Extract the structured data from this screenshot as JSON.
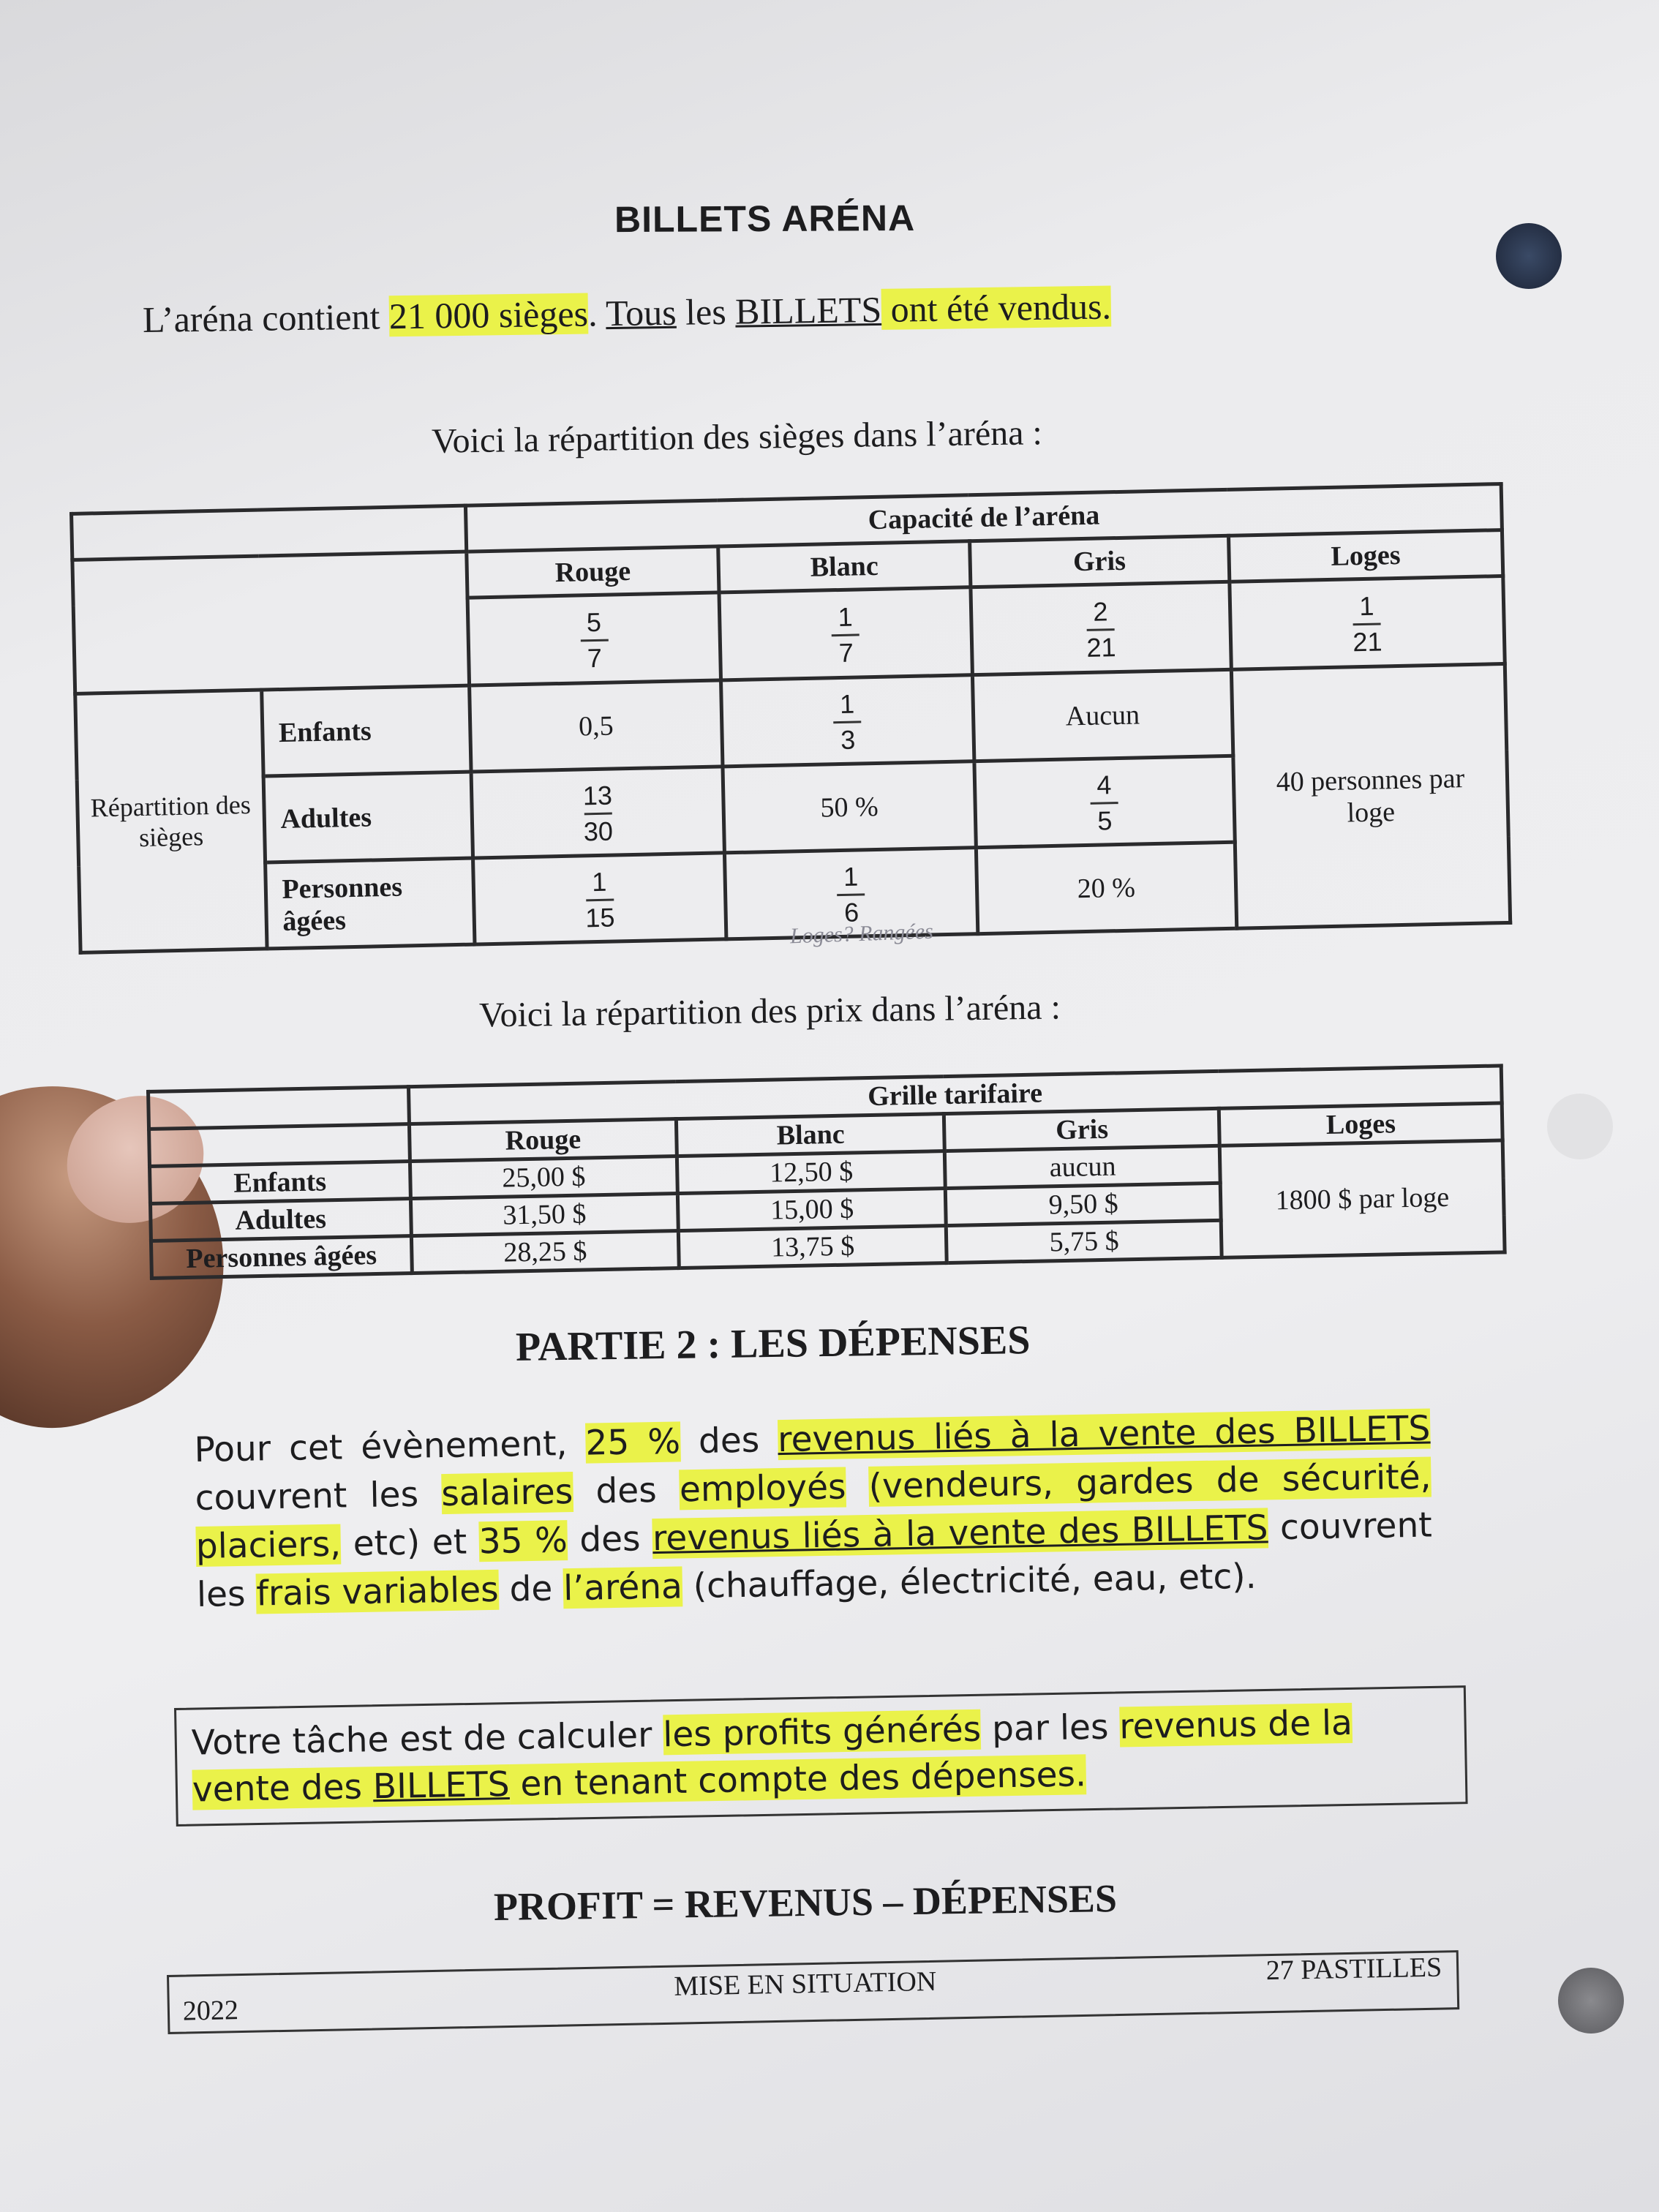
{
  "title": {
    "main": "BILLETS ARÉNA"
  },
  "intro": {
    "s1": "L’aréna contient ",
    "s2": "21 000 sièges",
    "s3": ". ",
    "s4": "Tous",
    "s5": " les ",
    "s6": "BILLETS",
    "s7": " ont été vendus."
  },
  "seats": {
    "caption": "Voici la répartition des sièges dans l’aréna :",
    "header": "Capacité de l’aréna",
    "columns": [
      "Rouge",
      "Blanc",
      "Gris",
      "Loges"
    ],
    "capacity": [
      {
        "num": "5",
        "den": "7"
      },
      {
        "num": "1",
        "den": "7"
      },
      {
        "num": "2",
        "den": "21"
      },
      {
        "num": "1",
        "den": "21"
      }
    ],
    "row_group": "Répartition des sièges",
    "rows": [
      {
        "label": "Enfants",
        "rouge": "0,5",
        "blanc": {
          "num": "1",
          "den": "3"
        },
        "gris": "Aucun"
      },
      {
        "label": "Adultes",
        "rouge": {
          "num": "13",
          "den": "30"
        },
        "blanc": "50 %",
        "gris": {
          "num": "4",
          "den": "5"
        }
      },
      {
        "label": "Personnes âgées",
        "rouge": {
          "num": "1",
          "den": "15"
        },
        "blanc": {
          "num": "1",
          "den": "6"
        },
        "gris": "20 %"
      }
    ],
    "loges_note": "40 personnes par loge",
    "handwritten": "Loges? Rangées"
  },
  "prices": {
    "caption": "Voici la répartition des prix dans l’aréna :",
    "header": "Grille tarifaire",
    "columns": [
      "Rouge",
      "Blanc",
      "Gris",
      "Loges"
    ],
    "rows": [
      {
        "label": "Enfants",
        "values": [
          "25,00 $",
          "12,50 $",
          "aucun"
        ]
      },
      {
        "label": "Adultes",
        "values": [
          "31,50 $",
          "15,00 $",
          "9,50 $"
        ]
      },
      {
        "label": "Personnes âgées",
        "values": [
          "28,25 $",
          "13,75 $",
          "5,75 $"
        ]
      }
    ],
    "loges": "1800 $ par loge"
  },
  "partie2": {
    "title": "PARTIE 2 : LES DÉPENSES",
    "p": [
      "Pour cet évènement, ",
      "25 %",
      " des ",
      "revenus liés à la vente des BILLETS",
      " couvrent les ",
      "salaires",
      " des ",
      "employés",
      " ",
      "(vendeurs, gardes de sécurité,",
      " ",
      "placiers,",
      " etc) et ",
      "35 %",
      " des ",
      "revenus liés à la vente des BILLETS",
      " couvrent les ",
      "frais variables",
      " de ",
      "l’aréna",
      " (chauffage, électricité, eau, etc)."
    ],
    "task": [
      "Votre tâche est de calculer ",
      "les profits générés",
      " par les ",
      "revenus de la vente des ",
      "BILLETS",
      " en tenant compte des dépenses."
    ],
    "formula": "PROFIT = REVENUS – DÉPENSES"
  },
  "footer": {
    "year": "2022",
    "center": "MISE EN SITUATION",
    "right": "27 PASTILLES"
  },
  "colors": {
    "highlight": "#eaf24a",
    "ink": "#1d1d1f",
    "paper": "#ececee"
  }
}
